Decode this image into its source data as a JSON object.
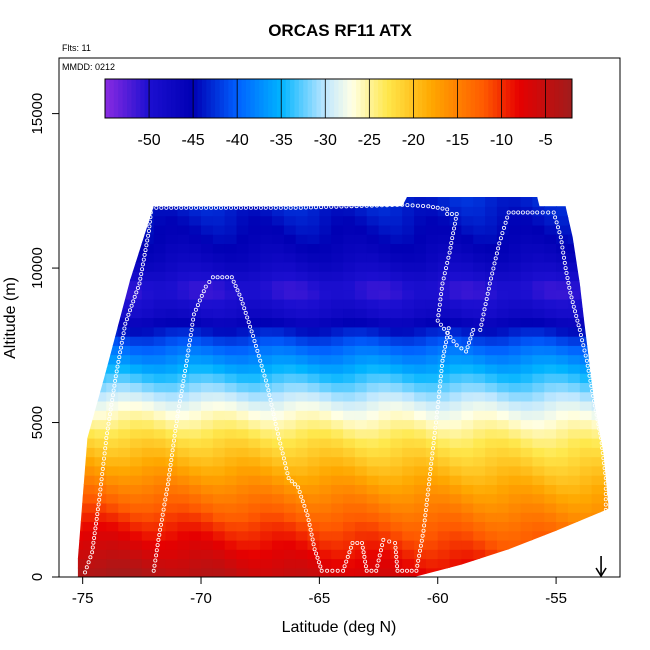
{
  "chart_data": {
    "type": "heatmap",
    "title": "ORCAS RF11 ATX",
    "xlabel": "Latitude (deg N)",
    "ylabel": "Altitude (m)",
    "annotations": {
      "flights": "Flts: 11",
      "date": "MMDD: 0212"
    },
    "xlim": [
      -76,
      -52.3
    ],
    "ylim": [
      0,
      16800
    ],
    "x_ticks": [
      -75,
      -70,
      -65,
      -60,
      -55
    ],
    "y_ticks": [
      0,
      5000,
      10000,
      15000
    ],
    "colorbar": {
      "range": [
        -55,
        -2
      ],
      "ticks": [
        -50,
        -45,
        -40,
        -35,
        -30,
        -25,
        -20,
        -15,
        -10,
        -5
      ],
      "stops": [
        {
          "v": -55,
          "c": "#8a2be2"
        },
        {
          "v": -50,
          "c": "#1c0fd0"
        },
        {
          "v": -45,
          "c": "#0000b4"
        },
        {
          "v": -40,
          "c": "#0060ff"
        },
        {
          "v": -35,
          "c": "#00b4ff"
        },
        {
          "v": -30,
          "c": "#bfe7ff"
        },
        {
          "v": -27,
          "c": "#ffffe6"
        },
        {
          "v": -23,
          "c": "#ffe84d"
        },
        {
          "v": -18,
          "c": "#ffa800"
        },
        {
          "v": -12,
          "c": "#ff5a00"
        },
        {
          "v": -8,
          "c": "#e60000"
        },
        {
          "v": -2,
          "c": "#a01c1c"
        }
      ]
    },
    "temperature_profile": [
      {
        "alt": 0,
        "temp": -6
      },
      {
        "alt": 1500,
        "temp": -11
      },
      {
        "alt": 3000,
        "temp": -17
      },
      {
        "alt": 4500,
        "temp": -23
      },
      {
        "alt": 5500,
        "temp": -28
      },
      {
        "alt": 6500,
        "temp": -34
      },
      {
        "alt": 7500,
        "temp": -40
      },
      {
        "alt": 8500,
        "temp": -48
      },
      {
        "alt": 9300,
        "temp": -51
      },
      {
        "alt": 10200,
        "temp": -47
      },
      {
        "alt": 11000,
        "temp": -45
      },
      {
        "alt": 12200,
        "temp": -43
      }
    ],
    "coverage_top": [
      [
        -75.2,
        600
      ],
      [
        -74.8,
        4500
      ],
      [
        -74.0,
        6700
      ],
      [
        -73.0,
        9600
      ],
      [
        -72.5,
        10800
      ],
      [
        -72.0,
        12000
      ],
      [
        -61.5,
        12000
      ],
      [
        -61.3,
        12300
      ],
      [
        -55.8,
        12300
      ],
      [
        -55.7,
        12000
      ],
      [
        -54.6,
        12000
      ],
      [
        -54.3,
        11000
      ],
      [
        -54.0,
        9500
      ],
      [
        -53.8,
        8200
      ],
      [
        -53.4,
        5700
      ],
      [
        -53.0,
        4000
      ],
      [
        -52.8,
        2400
      ]
    ],
    "coverage_bottom": [
      [
        -75.2,
        0
      ],
      [
        -61.0,
        0
      ],
      [
        -59.0,
        400
      ],
      [
        -57.0,
        900
      ],
      [
        -55.0,
        1500
      ],
      [
        -52.8,
        2200
      ]
    ],
    "flight_track": [
      [
        -74.9,
        150
      ],
      [
        -74.6,
        800
      ],
      [
        -74.3,
        2500
      ],
      [
        -74.0,
        4500
      ],
      [
        -73.6,
        6500
      ],
      [
        -73.2,
        8200
      ],
      [
        -72.6,
        9500
      ],
      [
        -72.2,
        11200
      ],
      [
        -72.1,
        11950
      ],
      [
        -66.0,
        11950
      ],
      [
        -61.5,
        12050
      ],
      [
        -60.4,
        12000
      ],
      [
        -59.6,
        11900
      ],
      [
        -59.6,
        11750
      ],
      [
        -59.2,
        11750
      ],
      [
        -59.5,
        10500
      ],
      [
        -59.8,
        9500
      ],
      [
        -60.0,
        8300
      ],
      [
        -59.2,
        7500
      ],
      [
        -58.8,
        7300
      ],
      [
        -58.5,
        8000
      ],
      [
        -58.2,
        8000
      ],
      [
        -57.8,
        9500
      ],
      [
        -57.4,
        10800
      ],
      [
        -57.0,
        11800
      ],
      [
        -55.8,
        11800
      ],
      [
        -55.1,
        11800
      ],
      [
        -54.8,
        11000
      ],
      [
        -54.6,
        10000
      ],
      [
        -54.4,
        9200
      ],
      [
        -54.0,
        8000
      ],
      [
        -53.7,
        7000
      ],
      [
        -53.4,
        5700
      ],
      [
        -53.1,
        4500
      ],
      [
        -52.9,
        3200
      ],
      [
        -52.9,
        2000
      ]
    ],
    "flight_track_mid": [
      [
        -72.0,
        200
      ],
      [
        -71.8,
        1200
      ],
      [
        -71.4,
        3000
      ],
      [
        -71.0,
        5200
      ],
      [
        -70.6,
        7000
      ],
      [
        -70.3,
        8500
      ],
      [
        -69.8,
        9400
      ],
      [
        -69.5,
        9700
      ],
      [
        -68.7,
        9700
      ],
      [
        -68.3,
        9000
      ],
      [
        -67.8,
        7800
      ],
      [
        -67.2,
        6200
      ],
      [
        -66.8,
        4800
      ],
      [
        -66.3,
        3200
      ],
      [
        -65.9,
        2900
      ],
      [
        -65.5,
        2000
      ],
      [
        -65.2,
        900
      ],
      [
        -64.9,
        200
      ],
      [
        -64.0,
        200
      ],
      [
        -63.6,
        1100
      ],
      [
        -63.2,
        1100
      ],
      [
        -63.0,
        200
      ],
      [
        -62.6,
        200
      ],
      [
        -62.3,
        1200
      ],
      [
        -61.8,
        1100
      ],
      [
        -61.7,
        200
      ],
      [
        -60.9,
        200
      ],
      [
        -60.6,
        1500
      ],
      [
        -60.3,
        3500
      ],
      [
        -60.0,
        5500
      ],
      [
        -59.8,
        7000
      ],
      [
        -59.5,
        8200
      ]
    ],
    "marker_arrow_lat": -53.1
  }
}
